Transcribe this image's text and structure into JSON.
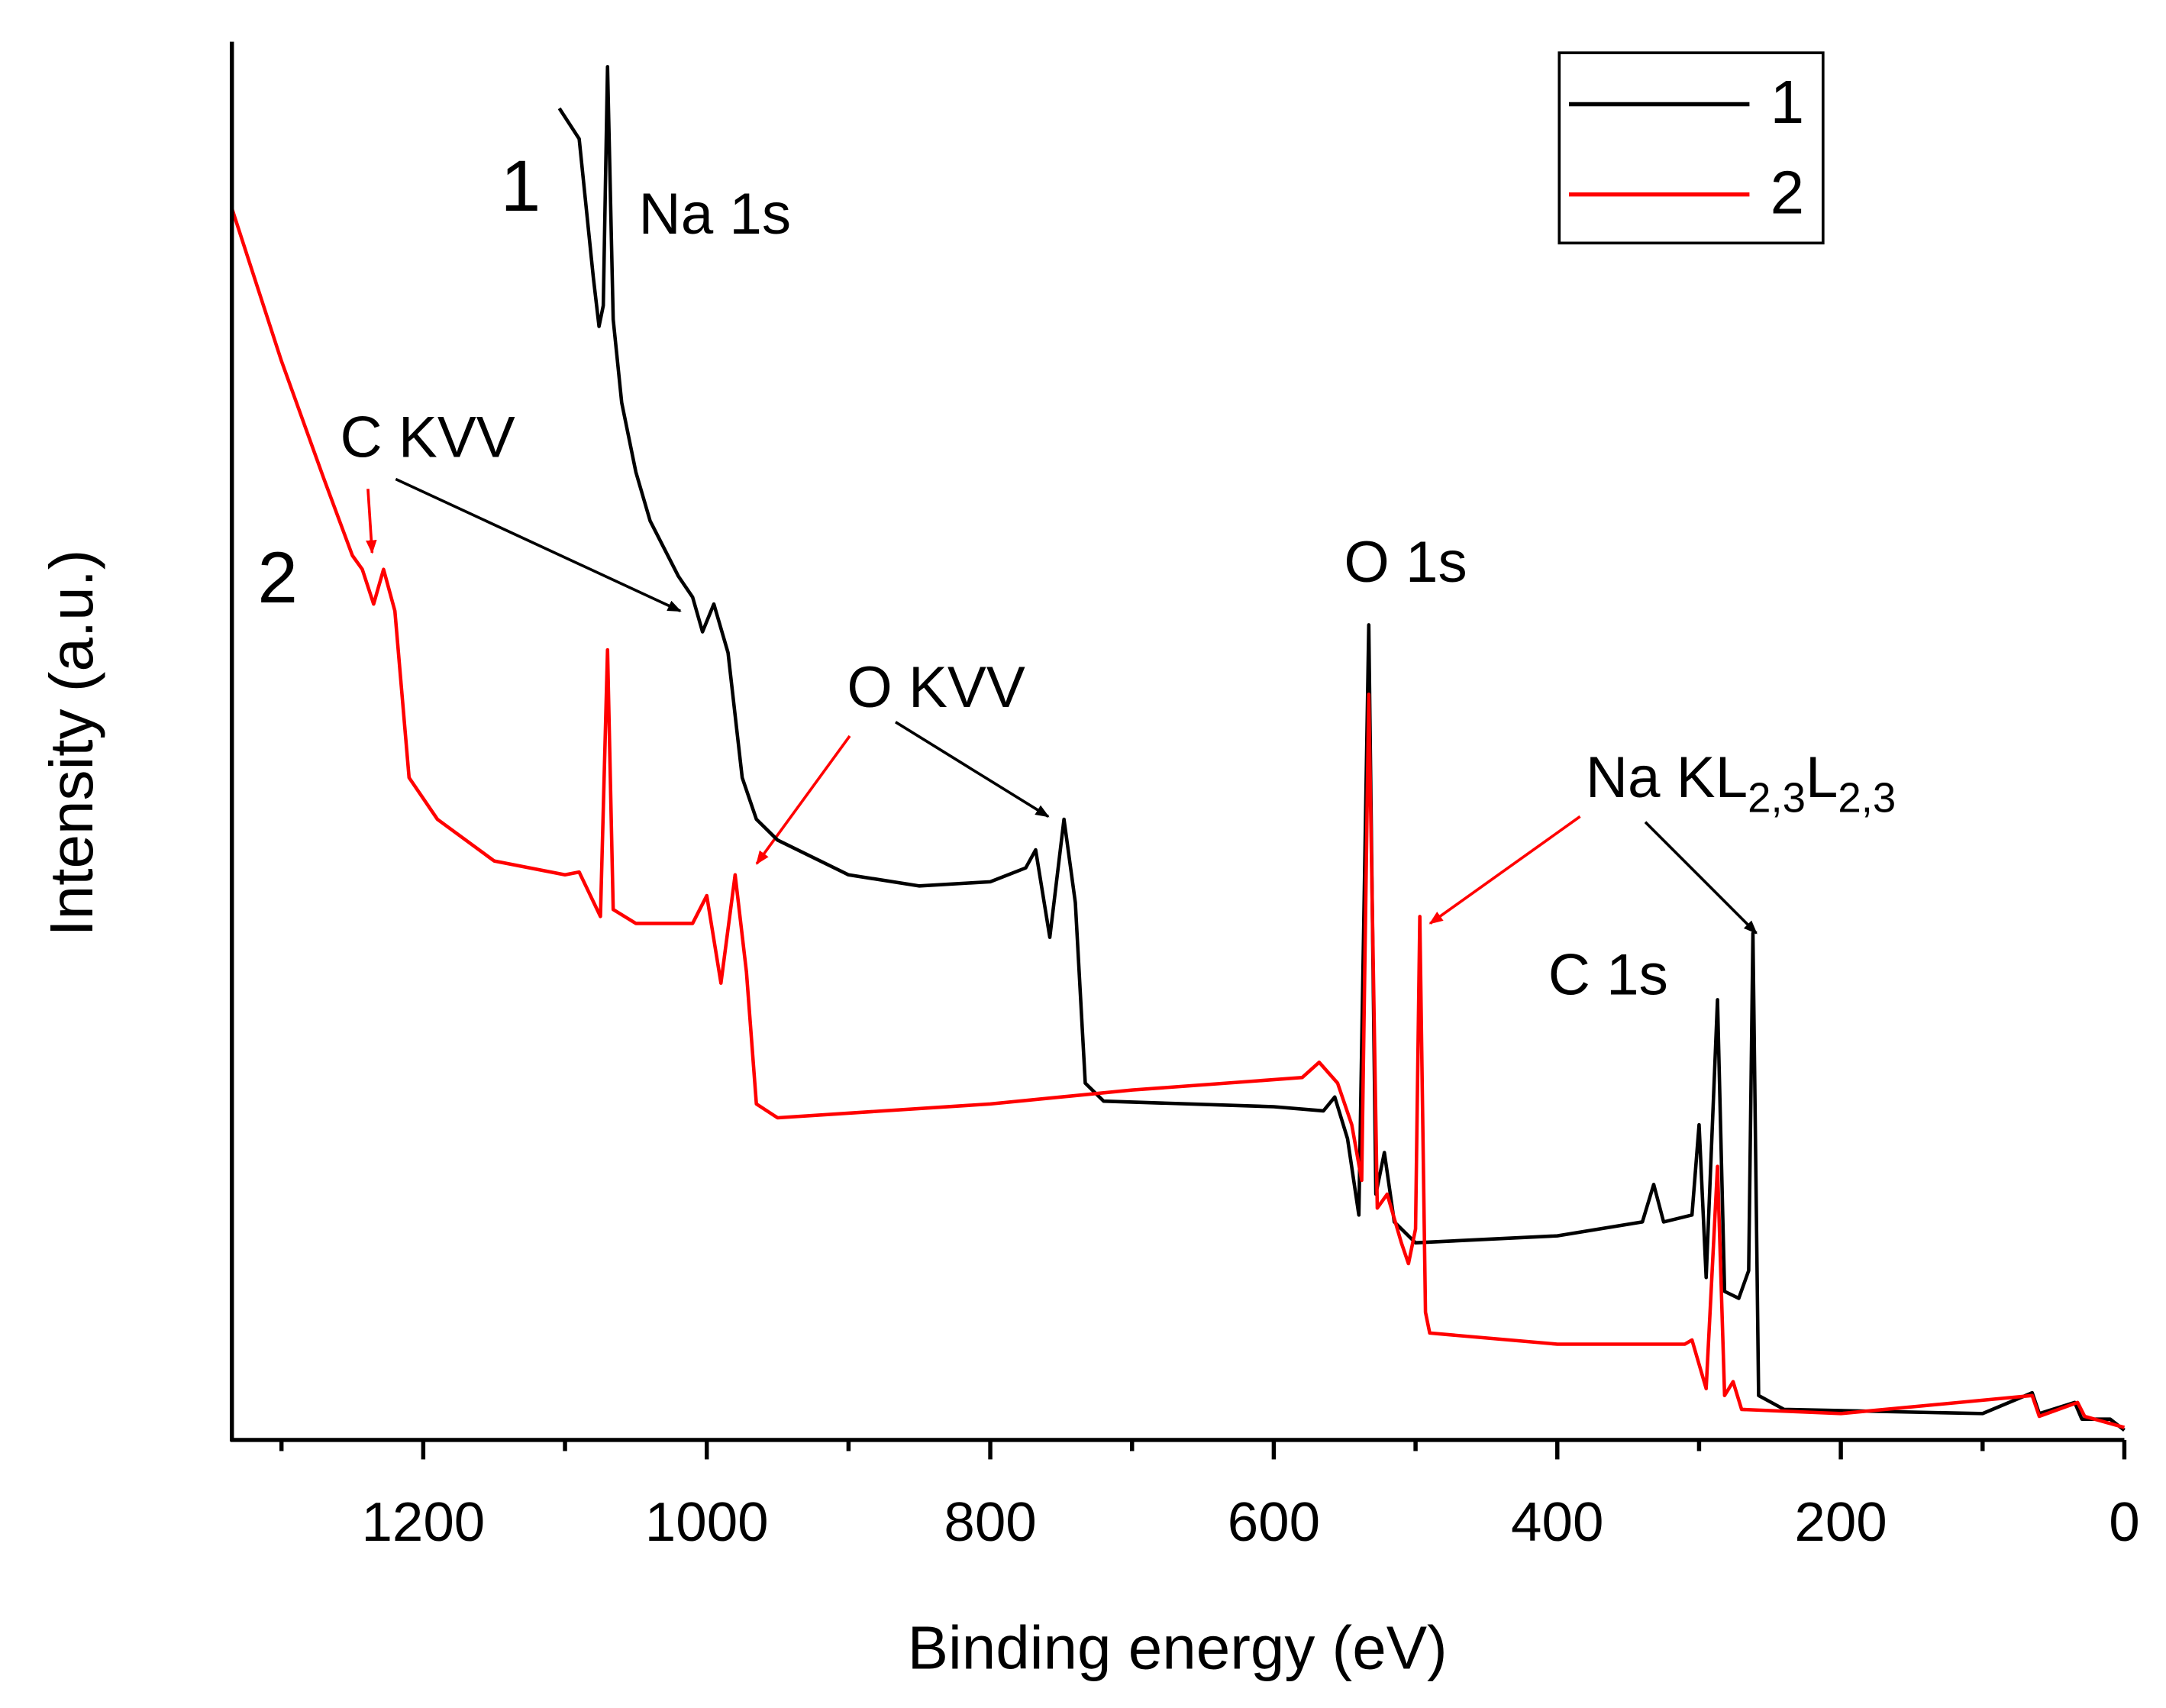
{
  "chart_data": {
    "type": "line",
    "x_label": "Binding energy (eV)",
    "y_label": "Intensity (a.u.)",
    "xlim": [
      1335,
      0
    ],
    "ylim": [
      0,
      101
    ],
    "xticks": [
      1200,
      1000,
      800,
      600,
      400,
      200,
      0
    ],
    "xticks_minor": [
      1300,
      1100,
      900,
      700,
      500,
      300,
      100
    ],
    "legend": "upper right",
    "series": [
      {
        "name": "1",
        "color": "#000000",
        "x": [
          1104,
          1090,
          1080,
          1076,
          1073,
          1070,
          1066,
          1060,
          1050,
          1040,
          1030,
          1020,
          1010,
          1003,
          995,
          985,
          975,
          965,
          950,
          900,
          850,
          800,
          775,
          768,
          758,
          748,
          740,
          733,
          720,
          600,
          565,
          557,
          548,
          540,
          533,
          528,
          522,
          515,
          500,
          400,
          340,
          332,
          325,
          305,
          300,
          295,
          287,
          282,
          272,
          265,
          262,
          258,
          240,
          100,
          65,
          60,
          35,
          30,
          10,
          0
        ],
        "values": [
          95.9,
          93.7,
          83.7,
          80.2,
          81.7,
          98.9,
          80.7,
          74.7,
          69.7,
          66.2,
          64.2,
          62.2,
          60.7,
          58.2,
          60.2,
          56.7,
          47.7,
          44.7,
          43.2,
          40.7,
          39.9,
          40.2,
          41.2,
          42.5,
          36.2,
          44.7,
          38.7,
          25.7,
          24.4,
          24.0,
          23.7,
          24.7,
          21.7,
          16.2,
          58.7,
          17.7,
          20.7,
          15.7,
          14.2,
          14.7,
          15.7,
          18.4,
          15.7,
          16.2,
          22.7,
          11.7,
          31.7,
          10.7,
          10.2,
          12.2,
          36.5,
          3.2,
          2.2,
          1.9,
          3.4,
          1.9,
          2.7,
          1.5,
          1.5,
          0.7
        ]
      },
      {
        "name": "2",
        "color": "#ff0000",
        "x": [
          1335,
          1300,
          1270,
          1250,
          1243,
          1235,
          1228,
          1220,
          1210,
          1190,
          1150,
          1100,
          1090,
          1075,
          1070,
          1066,
          1050,
          1010,
          1000,
          990,
          980,
          972,
          965,
          950,
          800,
          700,
          580,
          568,
          555,
          545,
          538,
          533,
          527,
          520,
          510,
          505,
          500,
          497,
          493,
          490,
          400,
          310,
          305,
          295,
          287,
          282,
          276,
          270,
          200,
          65,
          60,
          33,
          28,
          0
        ],
        "values": [
          88.7,
          77.7,
          69.2,
          63.7,
          62.7,
          60.2,
          62.7,
          59.7,
          47.7,
          44.7,
          41.7,
          40.7,
          40.9,
          37.7,
          56.9,
          38.2,
          37.2,
          37.2,
          39.2,
          32.9,
          40.7,
          33.7,
          24.2,
          23.2,
          24.2,
          25.2,
          26.1,
          27.2,
          25.7,
          22.7,
          18.7,
          53.7,
          16.7,
          17.7,
          14.2,
          12.7,
          15.2,
          37.7,
          9.2,
          7.7,
          6.9,
          6.9,
          7.2,
          3.7,
          19.7,
          3.2,
          4.2,
          2.2,
          1.9,
          3.2,
          1.7,
          2.7,
          1.7,
          0.9
        ]
      }
    ],
    "annotations": [
      {
        "text": "1"
      },
      {
        "text": "Na 1s"
      },
      {
        "text": "C KVV"
      },
      {
        "text": "2"
      },
      {
        "text": "O KVV"
      },
      {
        "text": "O 1s"
      },
      {
        "parts": [
          "Na KL",
          "2,3",
          "L",
          "2,3"
        ]
      },
      {
        "text": "C 1s"
      }
    ]
  }
}
